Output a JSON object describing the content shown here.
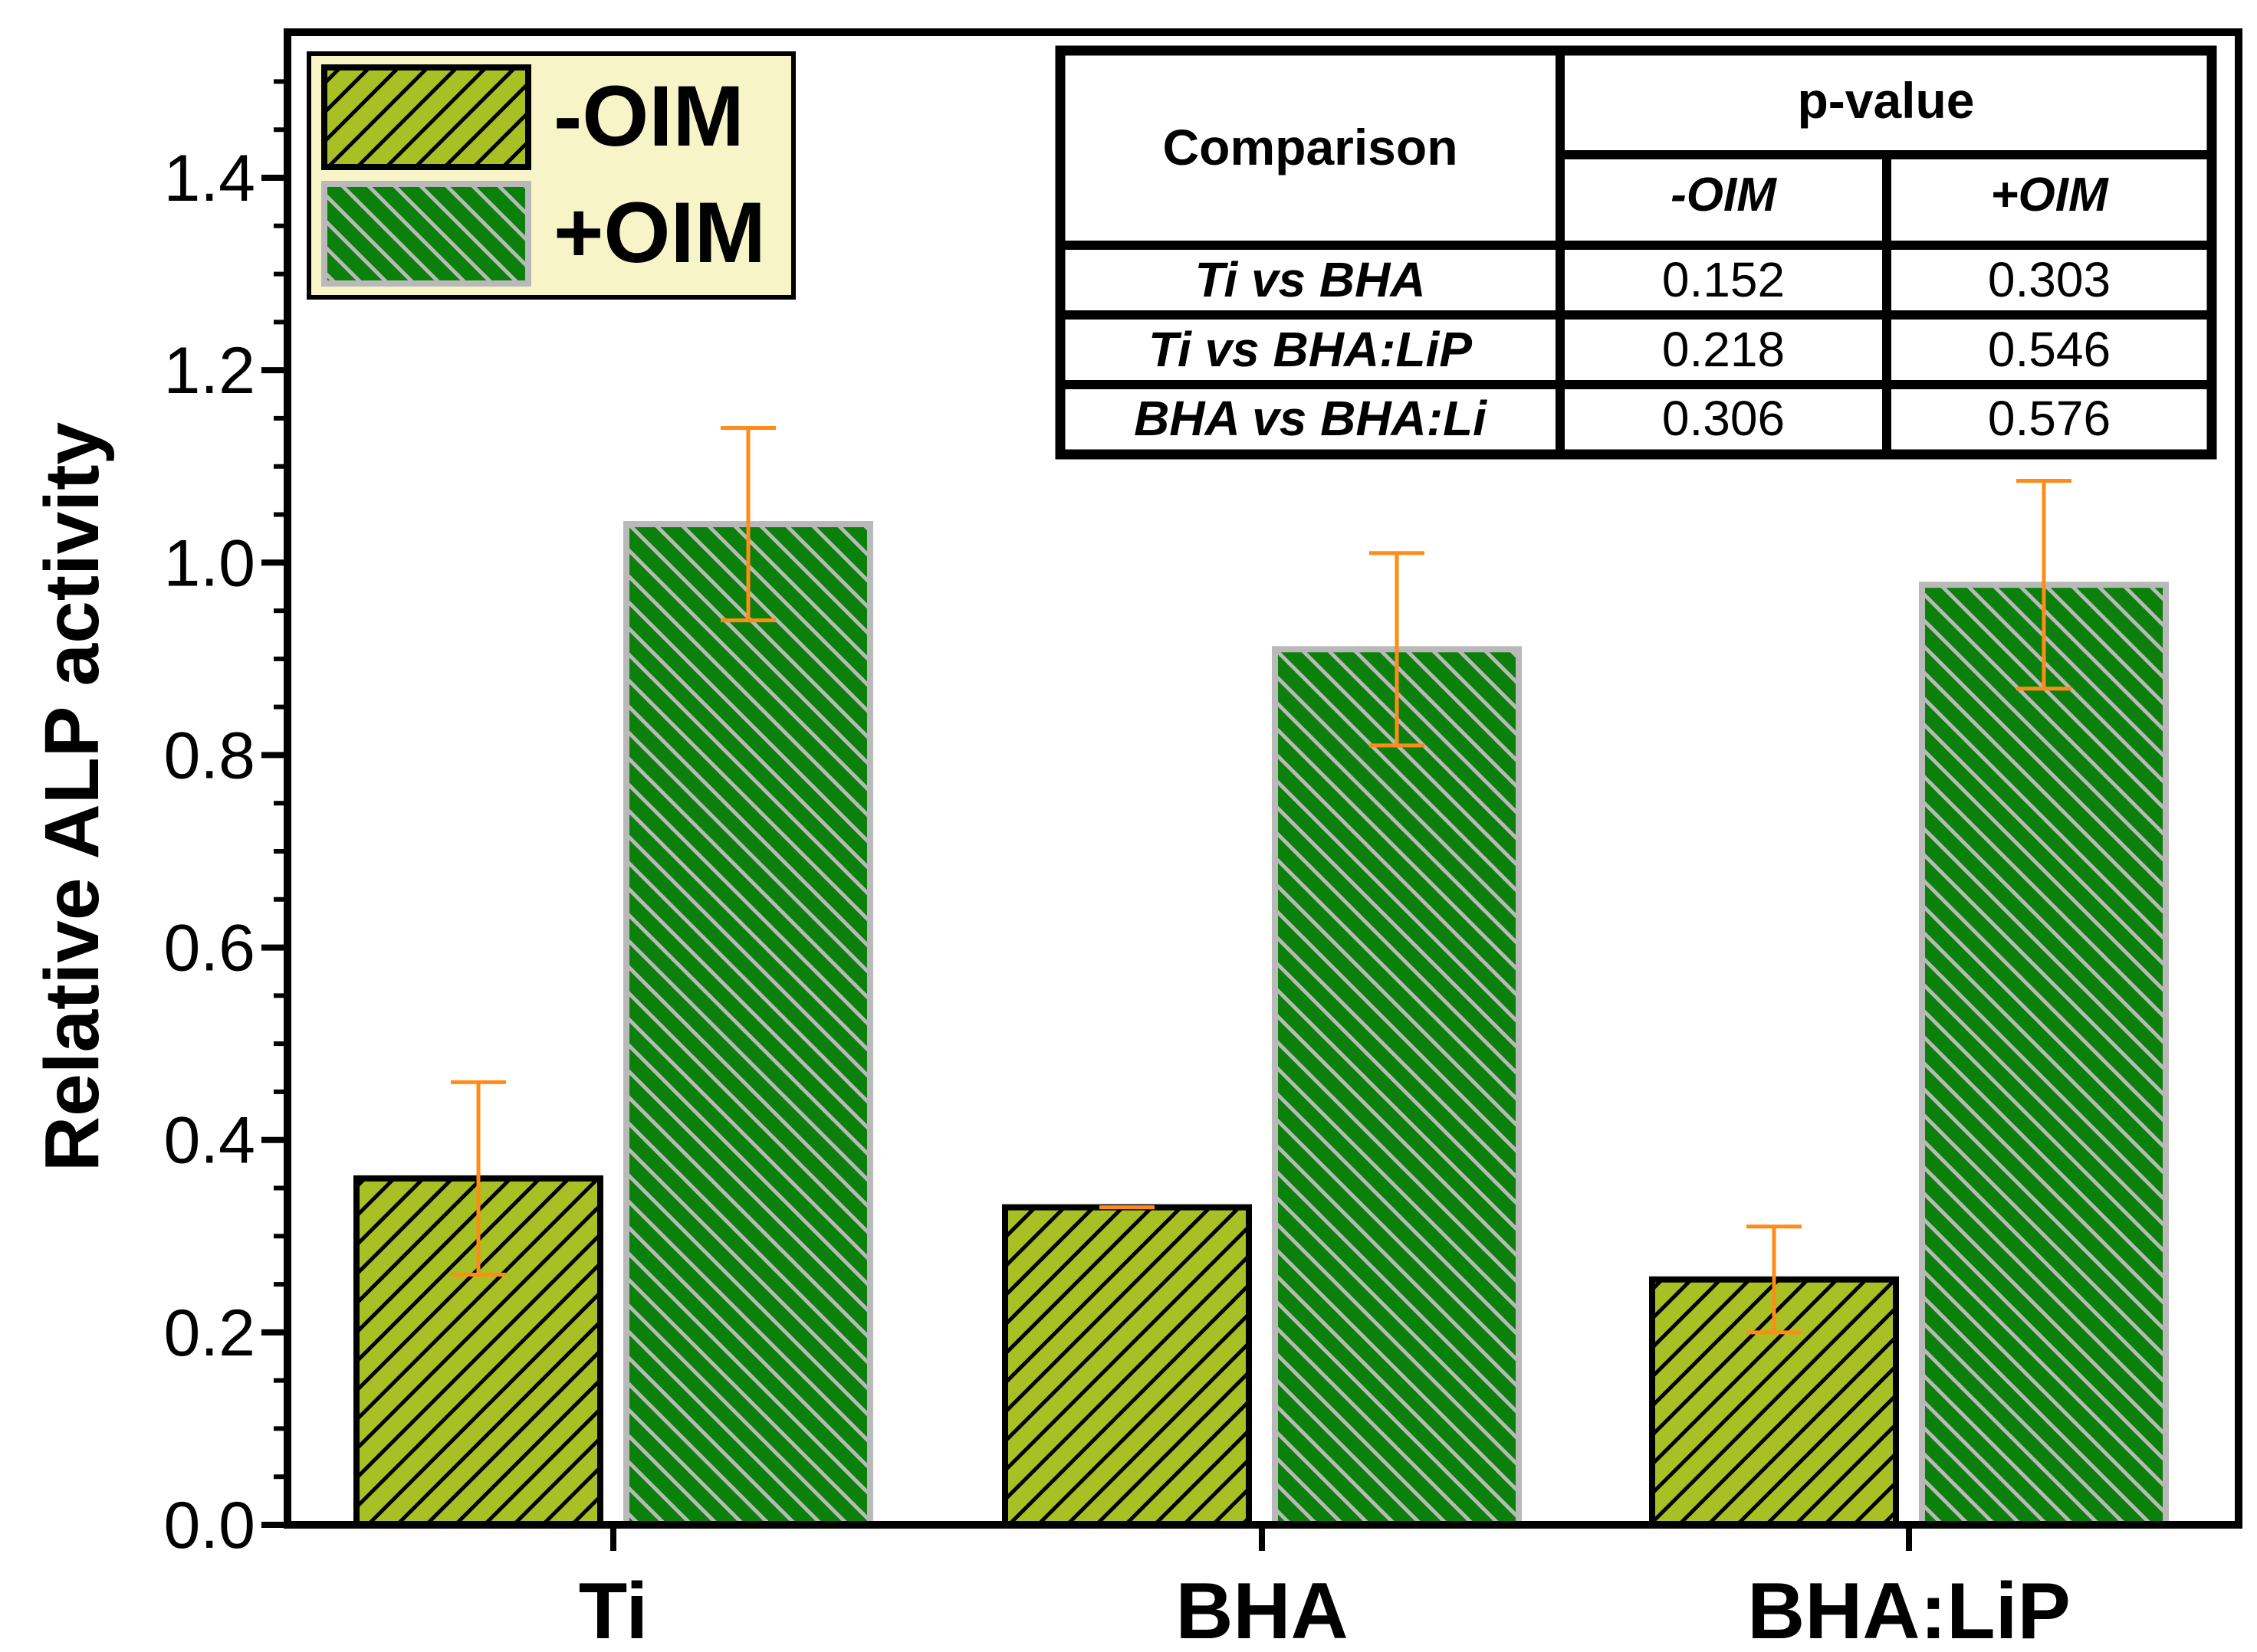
{
  "chart_data": {
    "type": "bar",
    "title": "",
    "xlabel": "",
    "ylabel": "Relative ALP activity",
    "ylim": [
      0,
      1.55
    ],
    "yticks": [
      "0.0",
      "0.2",
      "0.4",
      "0.6",
      "0.8",
      "1.0",
      "1.2",
      "1.4"
    ],
    "categories": [
      "Ti",
      "BHA",
      "BHA:LiP"
    ],
    "series": [
      {
        "name": "-OIM",
        "values": [
          0.36,
          0.33,
          0.255
        ],
        "errors": [
          0.1,
          0.0,
          0.055
        ],
        "color": "#a8c023",
        "hatch_color": "#000000",
        "edge_color": "#000000"
      },
      {
        "name": "+OIM",
        "values": [
          1.04,
          0.91,
          0.977
        ],
        "errors": [
          0.1,
          0.1,
          0.108
        ],
        "color": "#0b800b",
        "hatch_color": "#b9b9b9",
        "edge_color": "#b9b9b9"
      }
    ],
    "error_bar_color": "#ff8c1a",
    "legend": {
      "position": "top-left",
      "background": "#f7f5c8"
    },
    "inset_table": {
      "position": "top-right",
      "header_comparison": "Comparison",
      "header_pvalue": "p-value",
      "subheaders": [
        "-OIM",
        "+OIM"
      ],
      "rows": [
        {
          "comparison": "Ti vs BHA",
          "minus": "0.152",
          "plus": "0.303"
        },
        {
          "comparison": "Ti vs BHA:LiP",
          "minus": "0.218",
          "plus": "0.546"
        },
        {
          "comparison": "BHA vs BHA:Li",
          "minus": "0.306",
          "plus": "0.576"
        }
      ]
    }
  }
}
